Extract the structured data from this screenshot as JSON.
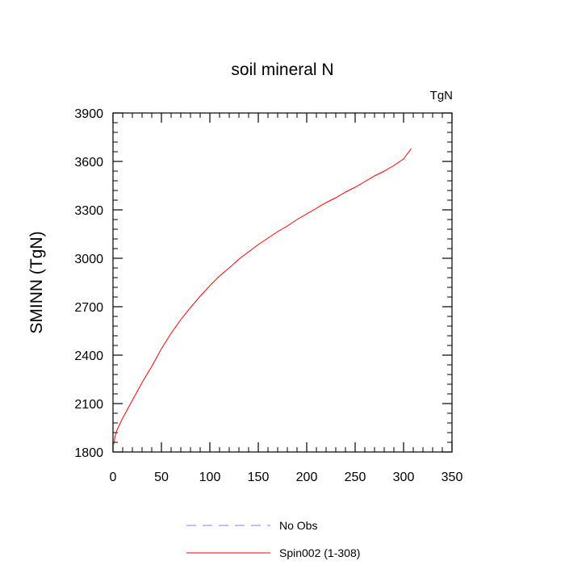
{
  "chart_data": {
    "type": "line",
    "title": "soil mineral N",
    "units_label": "TgN",
    "xlabel": "",
    "ylabel": "SMINN  (TgN)",
    "xlim": [
      0,
      350
    ],
    "ylim": [
      1800,
      3900
    ],
    "x_ticks": [
      0,
      50,
      100,
      150,
      200,
      250,
      300,
      350
    ],
    "y_ticks": [
      1800,
      2100,
      2400,
      2700,
      3000,
      3300,
      3600,
      3900
    ],
    "grid": false,
    "legend_position": "bottom",
    "colors": {
      "no_obs": "#8080ff",
      "spin002": "#ff0000"
    },
    "series": [
      {
        "name": "No Obs",
        "style": "dashed",
        "color": "#8080ff",
        "x": [],
        "y": []
      },
      {
        "name": "Spin002 (1-308)",
        "style": "solid",
        "color": "#ff0000",
        "x": [
          1,
          2,
          4,
          6,
          8,
          10,
          15,
          20,
          25,
          30,
          40,
          50,
          60,
          70,
          80,
          90,
          100,
          110,
          120,
          130,
          140,
          150,
          160,
          170,
          180,
          190,
          200,
          210,
          220,
          230,
          240,
          250,
          260,
          270,
          280,
          290,
          300,
          308
        ],
        "y": [
          1850,
          1895,
          1935,
          1960,
          1985,
          2010,
          2065,
          2120,
          2175,
          2230,
          2330,
          2440,
          2535,
          2620,
          2695,
          2765,
          2830,
          2890,
          2940,
          2995,
          3040,
          3085,
          3125,
          3165,
          3200,
          3240,
          3275,
          3310,
          3345,
          3375,
          3410,
          3440,
          3475,
          3510,
          3540,
          3575,
          3615,
          3680
        ]
      }
    ]
  }
}
